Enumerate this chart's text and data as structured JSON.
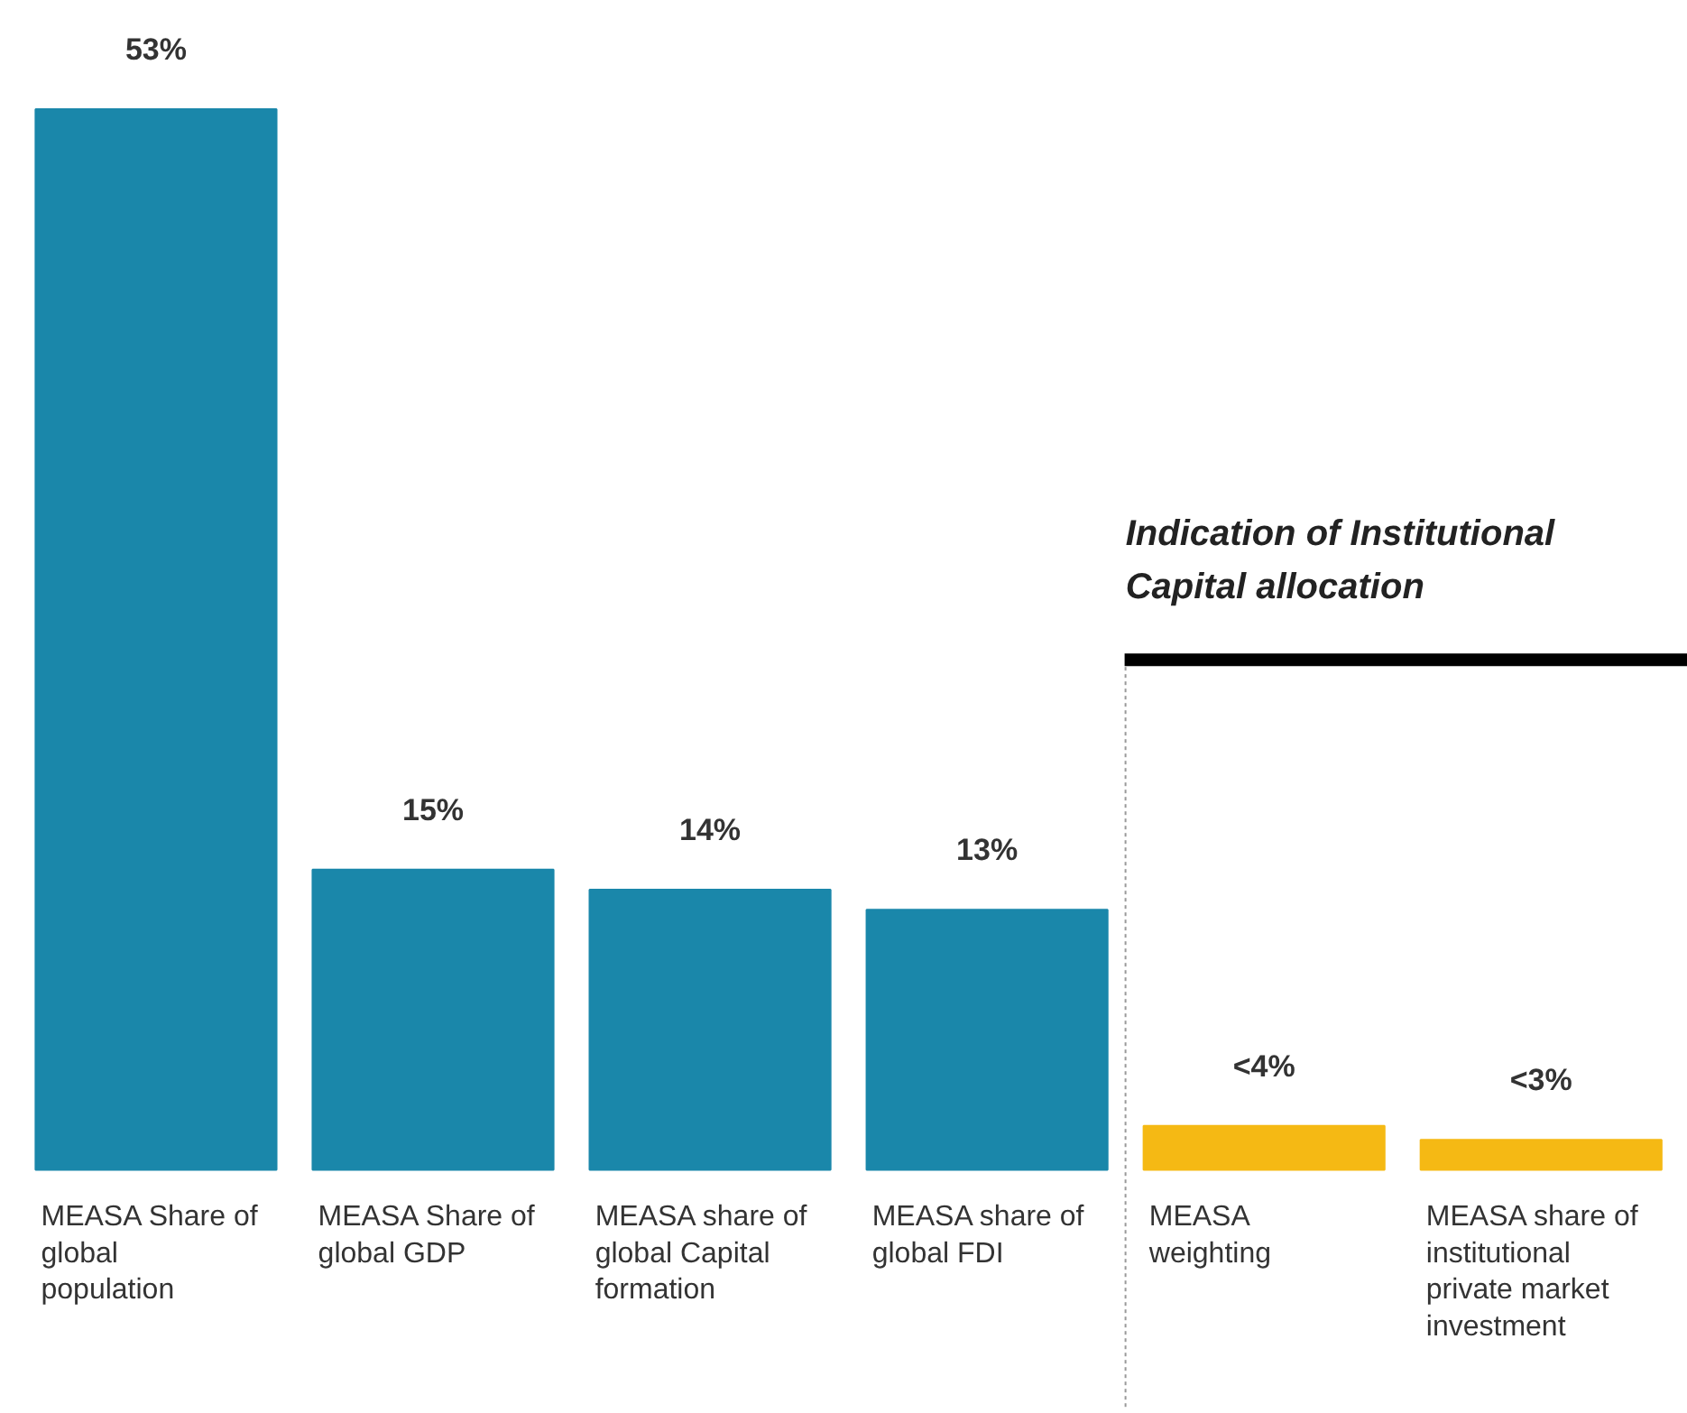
{
  "chart_data": {
    "type": "bar",
    "categories": [
      "MEASA Share of global population",
      "MEASA Share of global GDP",
      "MEASA share of global Capital formation",
      "MEASA share of global FDI",
      "MEASA weighting",
      "MEASA share of institutional private market investment"
    ],
    "values": [
      53,
      15,
      14,
      13,
      2.2,
      1.5
    ],
    "colors": [
      "#1a87aa",
      "#1a87aa",
      "#1a87aa",
      "#1a87aa",
      "#f5b914",
      "#f5b914"
    ],
    "value_labels": [
      "53%",
      "15%",
      "14%",
      "13%",
      "<4%",
      "<3%"
    ],
    "annotations": [
      "Indication of Institutional Capital allocation"
    ]
  }
}
